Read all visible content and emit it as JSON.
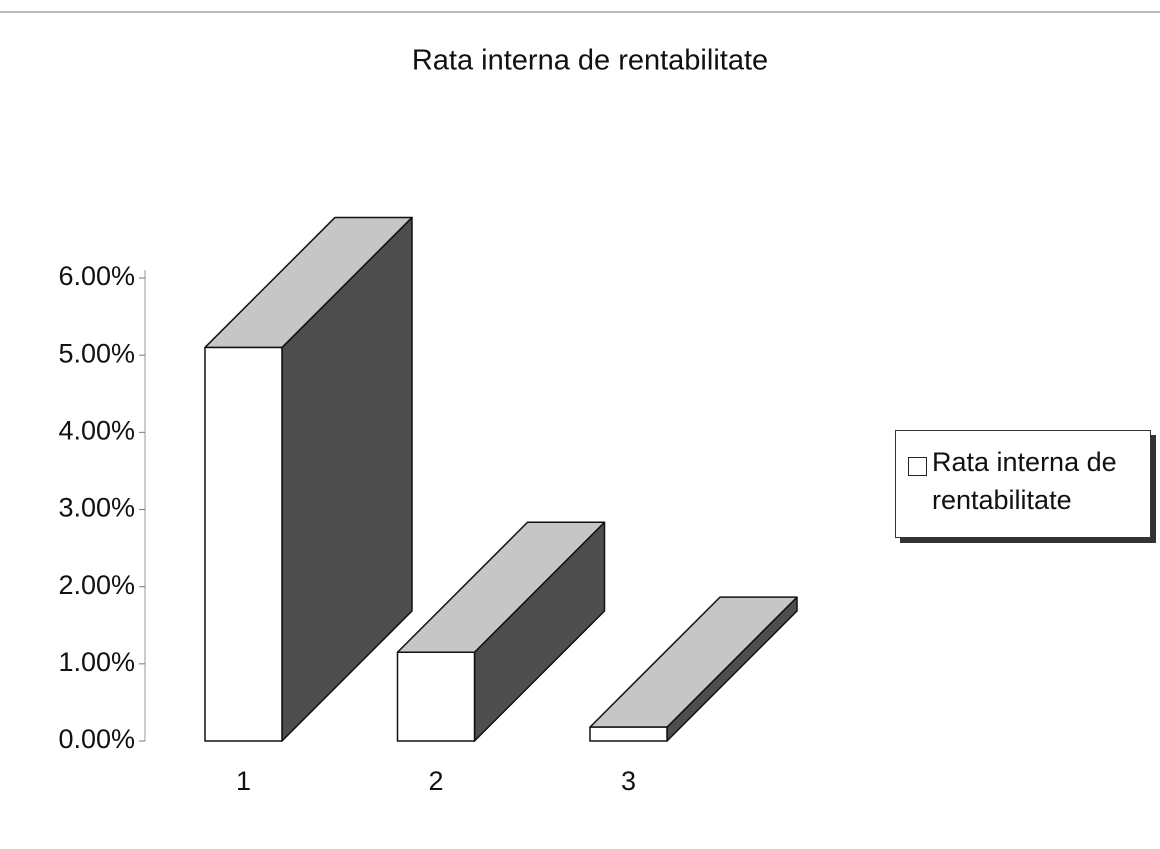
{
  "chart_data": {
    "type": "bar3d",
    "title": "Rata interna de rentabilitate",
    "categories": [
      "1",
      "2",
      "3"
    ],
    "series": [
      {
        "name": "Rata interna de rentabilitate",
        "color": "#ffffff",
        "values": [
          5.1,
          1.15,
          0.18
        ]
      }
    ],
    "ylim": [
      0,
      6
    ],
    "yticks": [
      {
        "value": 0,
        "label": "0.00%"
      },
      {
        "value": 1,
        "label": "1.00%"
      },
      {
        "value": 2,
        "label": "2.00%"
      },
      {
        "value": 3,
        "label": "3.00%"
      },
      {
        "value": 4,
        "label": "4.00%"
      },
      {
        "value": 5,
        "label": "5.00%"
      },
      {
        "value": 6,
        "label": "6.00%"
      }
    ],
    "top_color": "#c6c6c6",
    "side_color": "#4e4e4e",
    "legend": "right"
  }
}
